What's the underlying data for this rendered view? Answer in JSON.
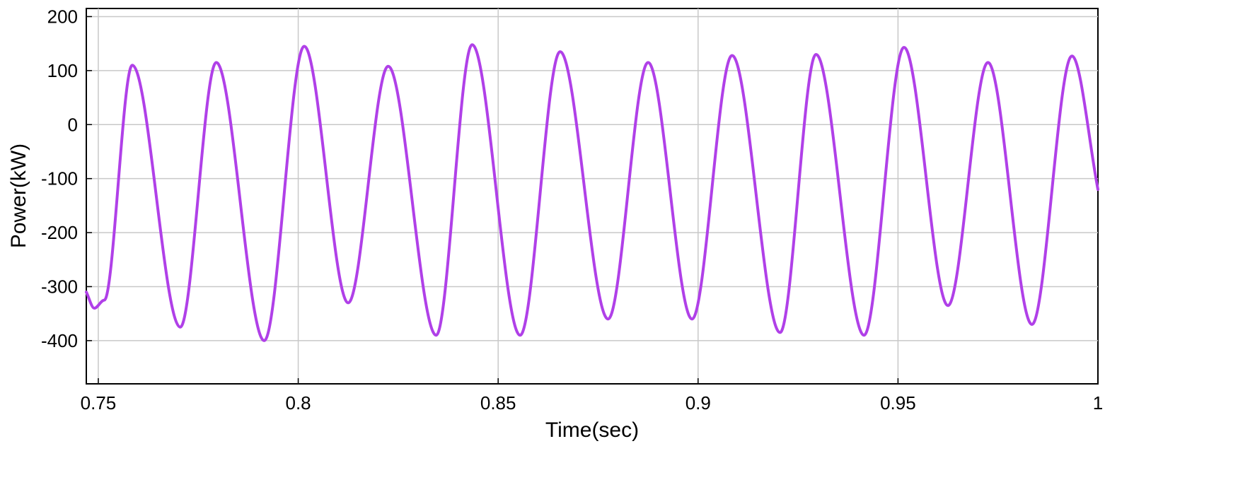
{
  "chart_data": {
    "type": "line",
    "title": "",
    "xlabel": "Time(sec)",
    "ylabel": "Power(kW)",
    "xlim": [
      0.747,
      1.0
    ],
    "ylim": [
      -480,
      215
    ],
    "x_ticks": [
      0.75,
      0.8,
      0.85,
      0.9,
      0.95,
      1.0
    ],
    "x_tick_labels": [
      "0.75",
      "0.8",
      "0.85",
      "0.9",
      "0.95",
      "1"
    ],
    "y_ticks": [
      200,
      100,
      0,
      -100,
      -200,
      -300,
      -400
    ],
    "y_tick_labels": [
      "200",
      "100",
      "0",
      "-100",
      "-200",
      "-300",
      "-400"
    ],
    "grid": true,
    "legend": "none",
    "series": [
      {
        "color": "#b040e8",
        "x": [
          0.747,
          0.749,
          0.7515,
          0.7585,
          0.7705,
          0.7795,
          0.7915,
          0.8015,
          0.8125,
          0.8225,
          0.8345,
          0.8435,
          0.8555,
          0.8655,
          0.8775,
          0.8875,
          0.8985,
          0.9085,
          0.9205,
          0.9295,
          0.9415,
          0.9515,
          0.9625,
          0.9725,
          0.9835,
          0.9935,
          1.0
        ],
        "y": [
          -310,
          -340,
          -325,
          110,
          -375,
          115,
          -400,
          145,
          -330,
          108,
          -390,
          148,
          -390,
          135,
          -360,
          115,
          -360,
          128,
          -385,
          130,
          -390,
          143,
          -335,
          115,
          -370,
          127,
          -120
        ]
      }
    ]
  }
}
